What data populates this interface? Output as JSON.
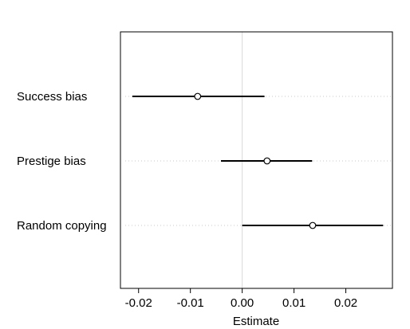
{
  "chart_data": {
    "type": "forest",
    "title": "",
    "xlabel": "Estimate",
    "ylabel": "",
    "xlim": [
      -0.0235,
      0.029
    ],
    "xticks": [
      -0.02,
      -0.01,
      0.0,
      0.01,
      0.02
    ],
    "xtick_labels": [
      "-0.02",
      "-0.01",
      "0.00",
      "0.01",
      "0.02"
    ],
    "reference_line": 0,
    "grid": false,
    "categories": [
      "Success bias",
      "Prestige bias",
      "Random copying"
    ],
    "estimates": [
      -0.0086,
      0.0048,
      0.0136
    ],
    "lower": [
      -0.0212,
      -0.0041,
      0.0
    ],
    "upper": [
      0.0043,
      0.0135,
      0.0272
    ],
    "colors": {
      "interval": "#000000",
      "point": "#000000",
      "reference": "#d9d9d9",
      "guide": "#c8c8c8",
      "frame": "#000000"
    }
  }
}
